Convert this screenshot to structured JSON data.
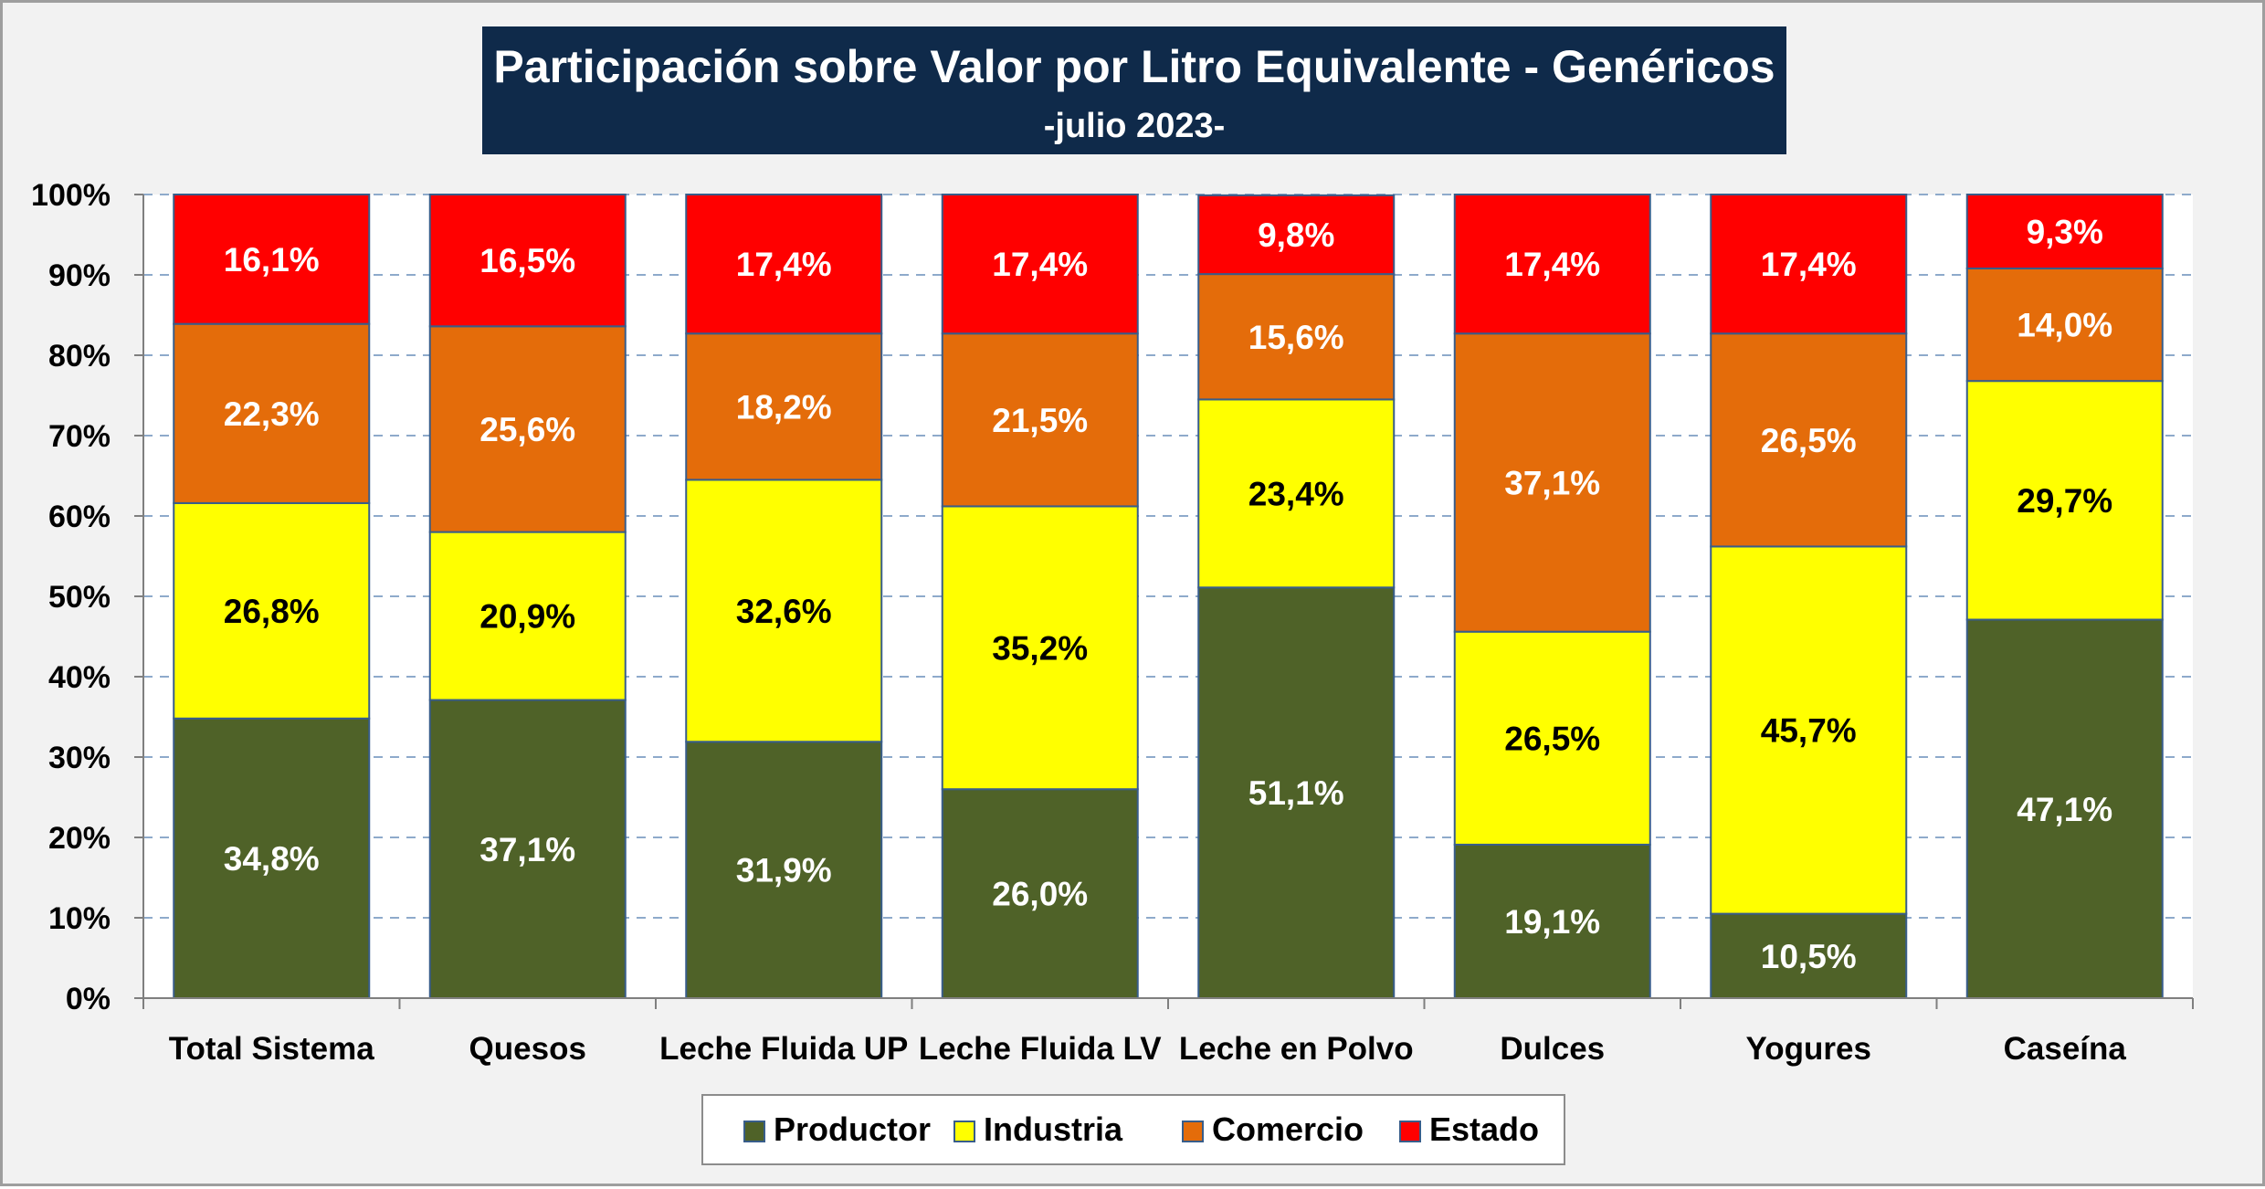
{
  "chart_data": {
    "type": "bar",
    "stacked": true,
    "title": "Participación sobre Valor por Litro Equivalente - Genéricos",
    "subtitle": "-julio 2023-",
    "categories": [
      "Total Sistema",
      "Quesos",
      "Leche Fluida UP",
      "Leche Fluida LV",
      "Leche en Polvo",
      "Dulces",
      "Yogures",
      "Caseína"
    ],
    "ylim": [
      0,
      100
    ],
    "yticks": [
      "0%",
      "10%",
      "20%",
      "30%",
      "40%",
      "50%",
      "60%",
      "70%",
      "80%",
      "90%",
      "100%"
    ],
    "grid": true,
    "legend_position": "bottom",
    "series": [
      {
        "name": "Productor",
        "color": "#4f6228",
        "label_color": "#ffffff",
        "values": [
          34.8,
          37.1,
          31.9,
          26.0,
          51.1,
          19.1,
          10.5,
          47.1
        ],
        "labels": [
          "34,8%",
          "37,1%",
          "31,9%",
          "26,0%",
          "51,1%",
          "19,1%",
          "10,5%",
          "47,1%"
        ]
      },
      {
        "name": "Industria",
        "color": "#ffff00",
        "label_color": "#000000",
        "values": [
          26.8,
          20.9,
          32.6,
          35.2,
          23.4,
          26.5,
          45.7,
          29.7
        ],
        "labels": [
          "26,8%",
          "20,9%",
          "32,6%",
          "35,2%",
          "23,4%",
          "26,5%",
          "45,7%",
          "29,7%"
        ]
      },
      {
        "name": "Comercio",
        "color": "#e46c0a",
        "label_color": "#ffffff",
        "values": [
          22.3,
          25.6,
          18.2,
          21.5,
          15.6,
          37.1,
          26.5,
          14.0
        ],
        "labels": [
          "22,3%",
          "25,6%",
          "18,2%",
          "21,5%",
          "15,6%",
          "37,1%",
          "26,5%",
          "14,0%"
        ]
      },
      {
        "name": "Estado",
        "color": "#ff0000",
        "label_color": "#ffffff",
        "values": [
          16.1,
          16.5,
          17.4,
          17.4,
          9.8,
          17.4,
          17.4,
          9.3
        ],
        "labels": [
          "16,1%",
          "16,5%",
          "17,4%",
          "17,4%",
          "9,8%",
          "17,4%",
          "17,4%",
          "9,3%"
        ]
      }
    ]
  },
  "colors": {
    "title_background": "#0f2a4a",
    "plot_background": "#ffffff",
    "frame_background": "#f2f2f2",
    "gridline": "#8eaacb"
  }
}
